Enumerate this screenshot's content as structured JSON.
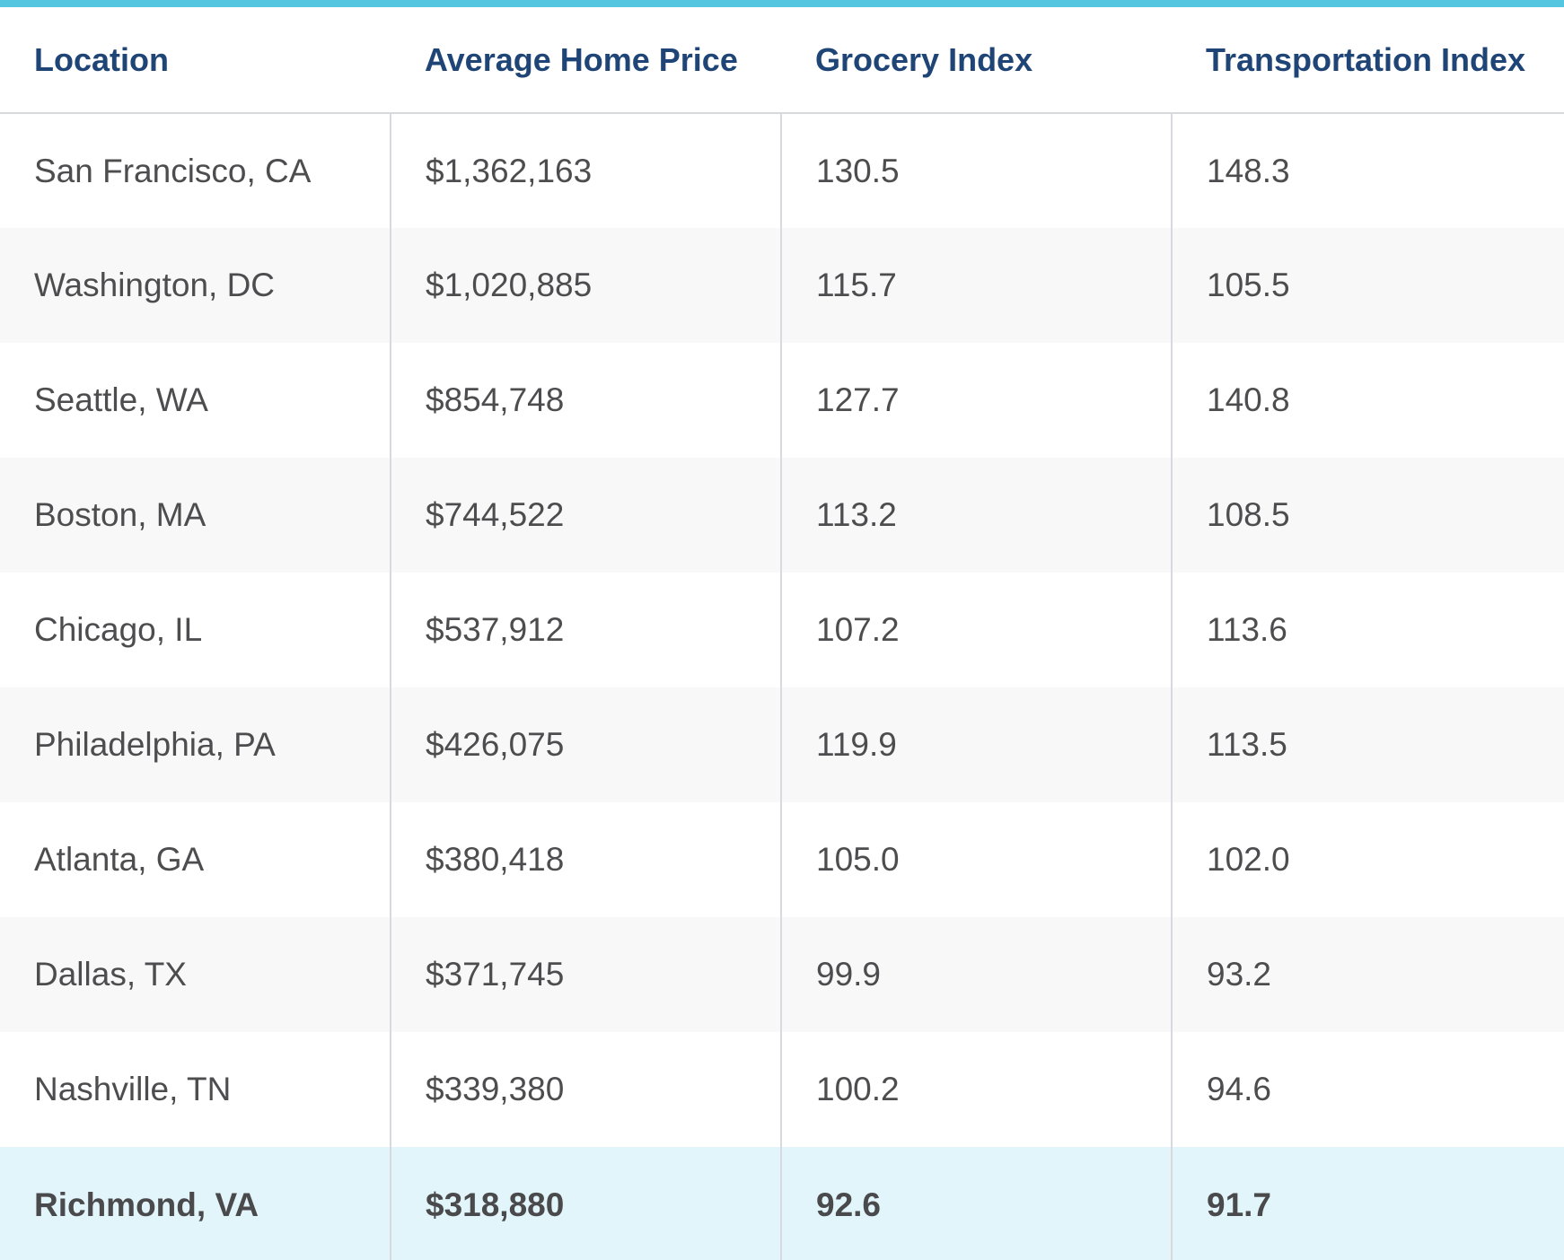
{
  "colors": {
    "accent_bar": "#54c6df",
    "header_text": "#1f4576",
    "body_text": "#4d4d4f",
    "stripe_row": "#f8f8f8",
    "highlight_row": "#e2f5fa",
    "grid_line": "#d6d9dd"
  },
  "table": {
    "columns": [
      "Location",
      "Average Home Price",
      "Grocery Index",
      "Transportation Index"
    ],
    "rows": [
      {
        "location": "San Francisco, CA",
        "home_price": "$1,362,163",
        "grocery": "130.5",
        "transportation": "148.3"
      },
      {
        "location": "Washington, DC",
        "home_price": "$1,020,885",
        "grocery": "115.7",
        "transportation": "105.5"
      },
      {
        "location": "Seattle, WA",
        "home_price": "$854,748",
        "grocery": "127.7",
        "transportation": "140.8"
      },
      {
        "location": "Boston, MA",
        "home_price": "$744,522",
        "grocery": "113.2",
        "transportation": "108.5"
      },
      {
        "location": "Chicago, IL",
        "home_price": "$537,912",
        "grocery": "107.2",
        "transportation": "113.6"
      },
      {
        "location": "Philadelphia, PA",
        "home_price": "$426,075",
        "grocery": "119.9",
        "transportation": "113.5"
      },
      {
        "location": "Atlanta, GA",
        "home_price": "$380,418",
        "grocery": "105.0",
        "transportation": "102.0"
      },
      {
        "location": "Dallas, TX",
        "home_price": "$371,745",
        "grocery": "99.9",
        "transportation": "93.2"
      },
      {
        "location": "Nashville, TN",
        "home_price": "$339,380",
        "grocery": "100.2",
        "transportation": "94.6"
      },
      {
        "location": "Richmond, VA",
        "home_price": "$318,880",
        "grocery": "92.6",
        "transportation": "91.7"
      }
    ]
  }
}
